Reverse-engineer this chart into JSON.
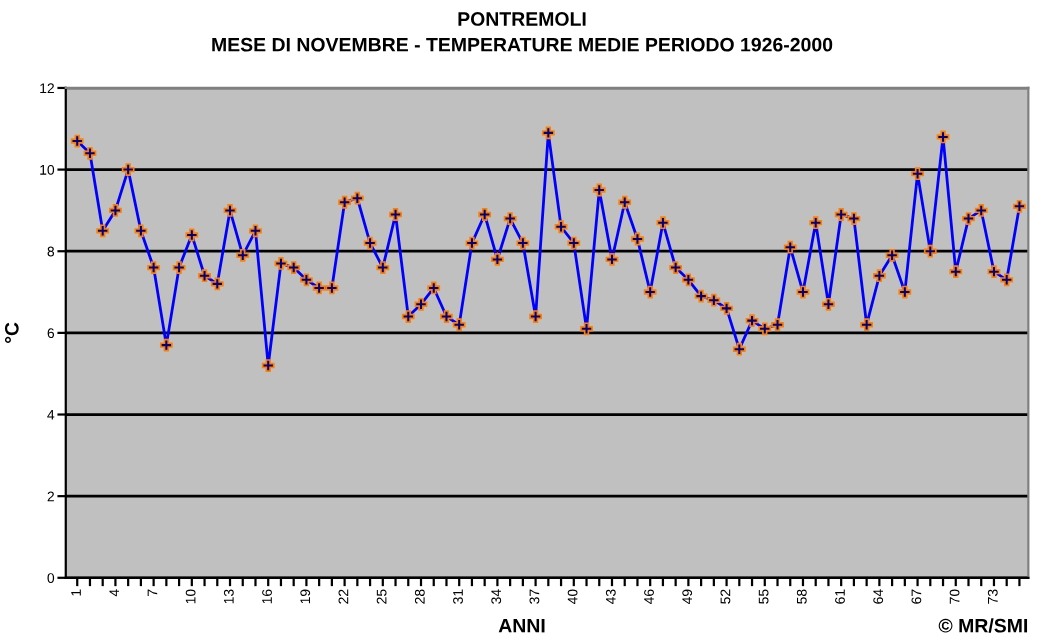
{
  "chart_data": {
    "type": "line",
    "title": "PONTREMOLI",
    "subtitle": "MESE DI NOVEMBRE - TEMPERATURE MEDIE PERIODO 1926-2000",
    "xlabel": "ANNI",
    "ylabel": "°C",
    "annotations": [
      "© MR/SMI"
    ],
    "categories": [
      "1",
      null,
      null,
      "4",
      null,
      null,
      "7",
      null,
      null,
      "10",
      null,
      null,
      "13",
      null,
      null,
      "16",
      null,
      null,
      "19",
      null,
      null,
      "22",
      null,
      null,
      "25",
      null,
      null,
      "28",
      null,
      null,
      "31",
      null,
      null,
      "34",
      null,
      null,
      "37",
      null,
      null,
      "40",
      null,
      null,
      "43",
      null,
      null,
      "46",
      null,
      null,
      "49",
      null,
      null,
      "52",
      null,
      null,
      "55",
      null,
      null,
      "58",
      null,
      null,
      "61",
      null,
      null,
      "64",
      null,
      null,
      "67",
      null,
      null,
      "70",
      null,
      null,
      "73",
      null,
      null
    ],
    "series": [
      {
        "color": "#0000ff",
        "values": [
          10.7,
          10.4,
          8.5,
          9.0,
          10.0,
          8.5,
          7.6,
          5.7,
          7.6,
          8.4,
          7.4,
          7.2,
          9.0,
          7.9,
          8.5,
          5.2,
          7.7,
          7.6,
          7.3,
          7.1,
          7.1,
          9.2,
          9.3,
          8.2,
          7.6,
          8.9,
          6.4,
          6.7,
          7.1,
          6.4,
          6.2,
          8.2,
          8.9,
          7.8,
          8.8,
          8.2,
          6.4,
          10.9,
          8.6,
          8.2,
          6.1,
          9.5,
          7.8,
          9.2,
          8.3,
          7.0,
          8.7,
          7.6,
          7.3,
          6.9,
          6.8,
          6.6,
          5.6,
          6.3,
          6.1,
          6.2,
          8.1,
          7.0,
          8.7,
          6.7,
          8.9,
          8.8,
          6.2,
          7.4,
          7.9,
          7.0,
          9.9,
          8.0,
          10.8,
          7.5,
          8.8,
          9.0,
          7.5,
          7.3,
          9.1
        ]
      }
    ],
    "ylim": [
      0,
      12
    ],
    "yticks": [
      0,
      2,
      4,
      6,
      8,
      10,
      12
    ],
    "grid": "y",
    "marker": "cross",
    "line_style": "solid"
  }
}
